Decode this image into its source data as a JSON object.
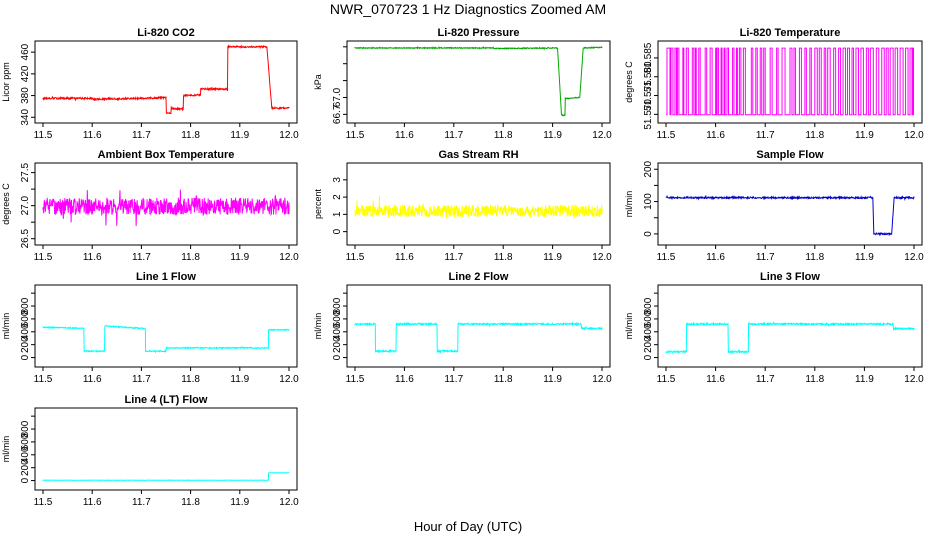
{
  "figure": {
    "title": "NWR_070723  1 Hz Diagnostics Zoomed AM",
    "xlabel": "Hour of Day (UTC)"
  },
  "chart_data": [
    {
      "id": "co2",
      "type": "line",
      "title": "Li-820 CO2",
      "ylabel": "Licor ppm",
      "color": "#ff0000",
      "xlim": [
        11.5,
        12.0
      ],
      "xticks": [
        "11.5",
        "11.6",
        "11.7",
        "11.8",
        "11.9",
        "12.0"
      ],
      "ylim": [
        335,
        475
      ],
      "yticks": [
        340,
        380,
        420,
        460
      ],
      "ytick_labels": [
        "340",
        "380",
        "420",
        "460"
      ],
      "noise": 1.5,
      "x": [
        11.5,
        11.6,
        11.6,
        11.75,
        11.75,
        11.76,
        11.76,
        11.785,
        11.785,
        11.82,
        11.82,
        11.875,
        11.875,
        11.955,
        11.955,
        11.965,
        11.965,
        12.0
      ],
      "y": [
        375,
        375,
        373,
        376,
        348,
        347,
        356,
        355,
        380,
        381,
        392,
        392,
        470,
        470,
        470,
        357,
        357,
        357
      ]
    },
    {
      "id": "pressure",
      "type": "line",
      "title": "Li-820 Pressure",
      "ylabel": "kPa",
      "color": "#00aa00",
      "xlim": [
        11.5,
        12.0
      ],
      "xticks": [
        "11.5",
        "11.6",
        "11.7",
        "11.8",
        "11.9",
        "12.0"
      ],
      "ylim": [
        66.6,
        67.95
      ],
      "yticks": [
        66.7,
        67.0,
        67.3,
        67.6,
        67.9
      ],
      "ytick_labels": [
        "66.7",
        "67.0",
        "",
        "",
        ""
      ],
      "noise": 0.008,
      "x": [
        11.5,
        11.78,
        11.78,
        11.91,
        11.91,
        11.918,
        11.918,
        11.925,
        11.925,
        11.955,
        11.955,
        11.962,
        11.962,
        12.0
      ],
      "y": [
        67.88,
        67.88,
        67.87,
        67.88,
        67.88,
        66.69,
        66.69,
        66.68,
        66.98,
        67.0,
        67.0,
        67.88,
        67.88,
        67.89
      ]
    },
    {
      "id": "licor_temp",
      "type": "line",
      "title": "Li-820 Temperature",
      "ylabel": "degrees C",
      "color": "#ff00ff",
      "xlim": [
        11.5,
        12.0
      ],
      "xticks": [
        "11.5",
        "11.6",
        "11.7",
        "11.8",
        "11.9",
        "12.0"
      ],
      "ylim": [
        51.5685,
        51.5887
      ],
      "yticks": [
        51.57,
        51.575,
        51.58,
        51.585
      ],
      "ytick_labels": [
        "51.570",
        "51.575",
        "51.580",
        "51.585"
      ],
      "toggle_levels": [
        51.5699,
        51.5876
      ],
      "toggles": [
        11.502,
        11.508,
        11.51,
        11.514,
        11.518,
        11.521,
        11.523,
        11.526,
        11.534,
        11.536,
        11.541,
        11.545,
        11.553,
        11.556,
        11.559,
        11.561,
        11.566,
        11.569,
        11.579,
        11.582,
        11.589,
        11.593,
        11.6,
        11.6015,
        11.603,
        11.606,
        11.611,
        11.613,
        11.617,
        11.619,
        11.623,
        11.626,
        11.634,
        11.637,
        11.642,
        11.644,
        11.648,
        11.651,
        11.656,
        11.66,
        11.672,
        11.675,
        11.681,
        11.684,
        11.69,
        11.693,
        11.697,
        11.7,
        11.71,
        11.714,
        11.723,
        11.726,
        11.734,
        11.74,
        11.75,
        11.754,
        11.758,
        11.761,
        11.769,
        11.773,
        11.78,
        11.783,
        11.79,
        11.793,
        11.8,
        11.805,
        11.809,
        11.813,
        11.819,
        11.822,
        11.826,
        11.831,
        11.838,
        11.842,
        11.848,
        11.852,
        11.857,
        11.862,
        11.866,
        11.87,
        11.875,
        11.878,
        11.883,
        11.888,
        11.893,
        11.898,
        11.904,
        11.908,
        11.912,
        11.918,
        11.924,
        11.929,
        11.935,
        11.94,
        11.944,
        11.948,
        11.952,
        11.958,
        11.962,
        11.967,
        11.972,
        11.978,
        11.983,
        11.988,
        11.992,
        11.996,
        11.998,
        11.999
      ]
    },
    {
      "id": "box_temp",
      "type": "line",
      "title": "Ambient Box Temperature",
      "ylabel": "degrees C",
      "color": "#ff00ff",
      "xlim": [
        11.5,
        12.0
      ],
      "xticks": [
        "11.5",
        "11.6",
        "11.7",
        "11.8",
        "11.9",
        "12.0"
      ],
      "ylim": [
        26.45,
        27.6
      ],
      "yticks": [
        26.5,
        26.75,
        27.0,
        27.25,
        27.5
      ],
      "ytick_labels": [
        "26.5",
        "",
        "27.0",
        "",
        "27.5"
      ],
      "noise": 0.13,
      "x": [
        11.5,
        12.0
      ],
      "y": [
        26.99,
        26.99
      ]
    },
    {
      "id": "rh",
      "type": "line",
      "title": "Gas Stream RH",
      "ylabel": "percent",
      "color": "#ffff00",
      "xlim": [
        11.5,
        12.0
      ],
      "xticks": [
        "11.5",
        "11.6",
        "11.7",
        "11.8",
        "11.9",
        "12.0"
      ],
      "ylim": [
        -0.6,
        3.8
      ],
      "yticks": [
        0,
        1,
        2,
        3
      ],
      "ytick_labels": [
        "0",
        "1",
        "2",
        "3"
      ],
      "noise": 0.35,
      "x": [
        11.5,
        12.0
      ],
      "y": [
        1.2,
        1.2
      ]
    },
    {
      "id": "sample_flow",
      "type": "line",
      "title": "Sample Flow",
      "ylabel": "ml/min",
      "color": "#0000cc",
      "xlim": [
        11.5,
        12.0
      ],
      "xticks": [
        "11.5",
        "11.6",
        "11.7",
        "11.8",
        "11.9",
        "12.0"
      ],
      "ylim": [
        -25,
        210
      ],
      "yticks": [
        0,
        50,
        100,
        150,
        200
      ],
      "ytick_labels": [
        "0",
        "",
        "100",
        "",
        "200"
      ],
      "noise": 2.5,
      "x": [
        11.5,
        11.917,
        11.917,
        11.919,
        11.919,
        11.955,
        11.955,
        11.96,
        11.96,
        12.0
      ],
      "y": [
        112,
        112,
        112,
        0,
        0,
        0,
        0,
        112,
        112,
        112
      ]
    },
    {
      "id": "line1",
      "type": "line",
      "title": "Line 1 Flow",
      "ylabel": "ml/min",
      "color": "#00ffff",
      "xlim": [
        11.5,
        12.0
      ],
      "xticks": [
        "11.5",
        "11.6",
        "11.7",
        "11.8",
        "11.9",
        "12.0"
      ],
      "ylim": [
        -100,
        1080
      ],
      "yticks": [
        0,
        200,
        400,
        600,
        800,
        1000
      ],
      "ytick_labels": [
        "0",
        "200",
        "400",
        "600",
        "800",
        ""
      ],
      "noise": 8,
      "x": [
        11.5,
        11.583,
        11.583,
        11.625,
        11.625,
        11.708,
        11.708,
        11.75,
        11.75,
        11.958,
        11.958,
        12.0
      ],
      "y": [
        470,
        455,
        100,
        100,
        490,
        450,
        100,
        100,
        150,
        150,
        430,
        430
      ]
    },
    {
      "id": "line2",
      "type": "line",
      "title": "Line 2 Flow",
      "ylabel": "ml/min",
      "color": "#00ffff",
      "xlim": [
        11.5,
        12.0
      ],
      "xticks": [
        "11.5",
        "11.6",
        "11.7",
        "11.8",
        "11.9",
        "12.0"
      ],
      "ylim": [
        -100,
        1080
      ],
      "yticks": [
        0,
        200,
        400,
        600,
        800,
        1000
      ],
      "ytick_labels": [
        "0",
        "200",
        "400",
        "600",
        "800",
        ""
      ],
      "noise": 12,
      "x": [
        11.5,
        11.541,
        11.541,
        11.583,
        11.583,
        11.666,
        11.666,
        11.708,
        11.708,
        11.958,
        11.958,
        12.0
      ],
      "y": [
        520,
        520,
        100,
        100,
        520,
        520,
        100,
        100,
        520,
        520,
        450,
        450
      ]
    },
    {
      "id": "line3",
      "type": "line",
      "title": "Line 3 Flow",
      "ylabel": "ml/min",
      "color": "#00ffff",
      "xlim": [
        11.5,
        12.0
      ],
      "xticks": [
        "11.5",
        "11.6",
        "11.7",
        "11.8",
        "11.9",
        "12.0"
      ],
      "ylim": [
        -100,
        1080
      ],
      "yticks": [
        0,
        200,
        400,
        600,
        800,
        1000
      ],
      "ytick_labels": [
        "0",
        "200",
        "400",
        "600",
        "800",
        ""
      ],
      "noise": 12,
      "x": [
        11.5,
        11.541,
        11.541,
        11.625,
        11.625,
        11.666,
        11.666,
        11.958,
        11.958,
        12.0
      ],
      "y": [
        90,
        90,
        520,
        520,
        90,
        90,
        520,
        520,
        450,
        450
      ]
    },
    {
      "id": "line4",
      "type": "line",
      "title": "Line 4 (LT) Flow",
      "ylabel": "ml/min",
      "color": "#00ffff",
      "xlim": [
        11.5,
        12.0
      ],
      "xticks": [
        "11.5",
        "11.6",
        "11.7",
        "11.8",
        "11.9",
        "12.0"
      ],
      "ylim": [
        -100,
        1080
      ],
      "yticks": [
        0,
        200,
        400,
        600,
        800,
        1000
      ],
      "ytick_labels": [
        "0",
        "200",
        "400",
        "600",
        "800",
        ""
      ],
      "noise": 2,
      "x": [
        11.5,
        11.958,
        11.958,
        12.0
      ],
      "y": [
        5,
        5,
        120,
        120
      ]
    }
  ]
}
